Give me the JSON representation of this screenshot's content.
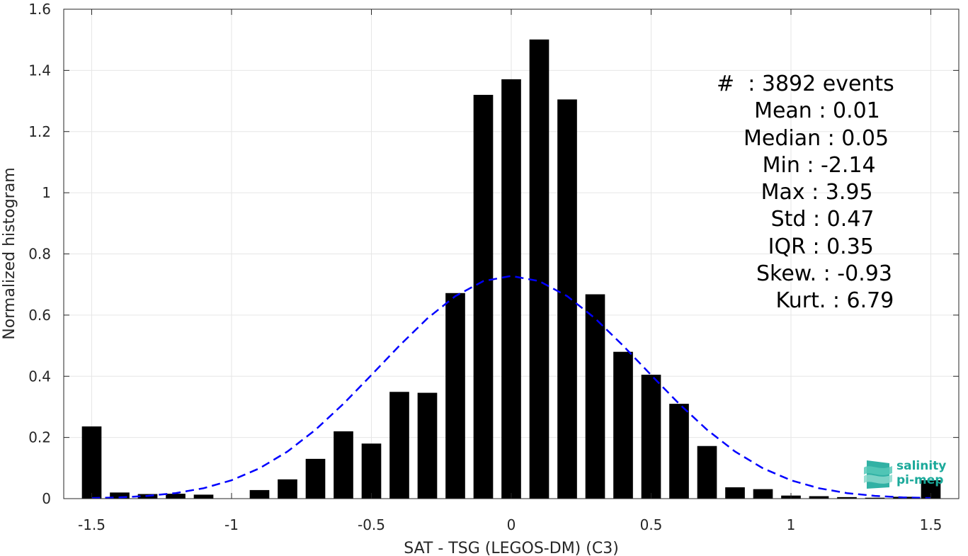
{
  "chart_data": {
    "type": "bar",
    "xlabel": "SAT - TSG (LEGOS-DM) (C3)",
    "ylabel": "Normalized histogram",
    "xlim": [
      -1.6,
      1.6
    ],
    "ylim": [
      0,
      1.6
    ],
    "xticks": [
      -1.5,
      -1,
      -0.5,
      0,
      0.5,
      1,
      1.5
    ],
    "xtick_labels": [
      "-1.5",
      "-1",
      "-0.5",
      "0",
      "0.5",
      "1",
      "1.5"
    ],
    "yticks": [
      0,
      0.2,
      0.4,
      0.6,
      0.8,
      1,
      1.2,
      1.4,
      1.6
    ],
    "ytick_labels": [
      "0",
      "0.2",
      "0.4",
      "0.6",
      "0.8",
      "1",
      "1.2",
      "1.4",
      "1.6"
    ],
    "grid": true,
    "bar_width": 0.07,
    "bars": {
      "x": [
        -1.5,
        -1.4,
        -1.3,
        -1.2,
        -1.1,
        -1.0,
        -0.9,
        -0.8,
        -0.7,
        -0.6,
        -0.5,
        -0.4,
        -0.3,
        -0.2,
        -0.1,
        0.0,
        0.1,
        0.2,
        0.3,
        0.4,
        0.5,
        0.6,
        0.7,
        0.8,
        0.9,
        1.0,
        1.1,
        1.2,
        1.3,
        1.4,
        1.5
      ],
      "values": [
        0.236,
        0.02,
        0.015,
        0.016,
        0.013,
        0.0,
        0.028,
        0.063,
        0.13,
        0.22,
        0.18,
        0.349,
        0.346,
        0.672,
        1.32,
        1.371,
        1.501,
        1.305,
        0.668,
        0.48,
        0.405,
        0.31,
        0.172,
        0.037,
        0.031,
        0.01,
        0.008,
        0.005,
        0.003,
        0.006,
        0.06
      ],
      "color": "#000000"
    },
    "fit_curve": {
      "style": "dashed",
      "color": "#0000ff",
      "x": [
        -1.5,
        -1.4,
        -1.3,
        -1.2,
        -1.1,
        -1.0,
        -0.9,
        -0.8,
        -0.7,
        -0.6,
        -0.5,
        -0.4,
        -0.3,
        -0.2,
        -0.1,
        0.0,
        0.1,
        0.2,
        0.3,
        0.4,
        0.5,
        0.6,
        0.7,
        0.8,
        0.9,
        1.0,
        1.1,
        1.2,
        1.3,
        1.4,
        1.5
      ],
      "values": [
        0.002,
        0.004,
        0.009,
        0.018,
        0.034,
        0.06,
        0.099,
        0.154,
        0.225,
        0.31,
        0.404,
        0.5,
        0.589,
        0.662,
        0.711,
        0.728,
        0.711,
        0.662,
        0.589,
        0.5,
        0.404,
        0.31,
        0.225,
        0.154,
        0.099,
        0.06,
        0.034,
        0.018,
        0.009,
        0.004,
        0.002
      ]
    },
    "annotations": [
      "#  : 3892 events",
      "  Mean : 0.01",
      "Median : 0.05",
      "   Min : -2.14",
      "   Max : 3.95",
      "   Std : 0.47",
      "   IQR : 0.35",
      "Skew. : -0.93",
      " Kurt. : 6.79"
    ]
  },
  "logo": {
    "line1": "salinity",
    "line2": "pi-mep",
    "color": "#1ba99a"
  }
}
